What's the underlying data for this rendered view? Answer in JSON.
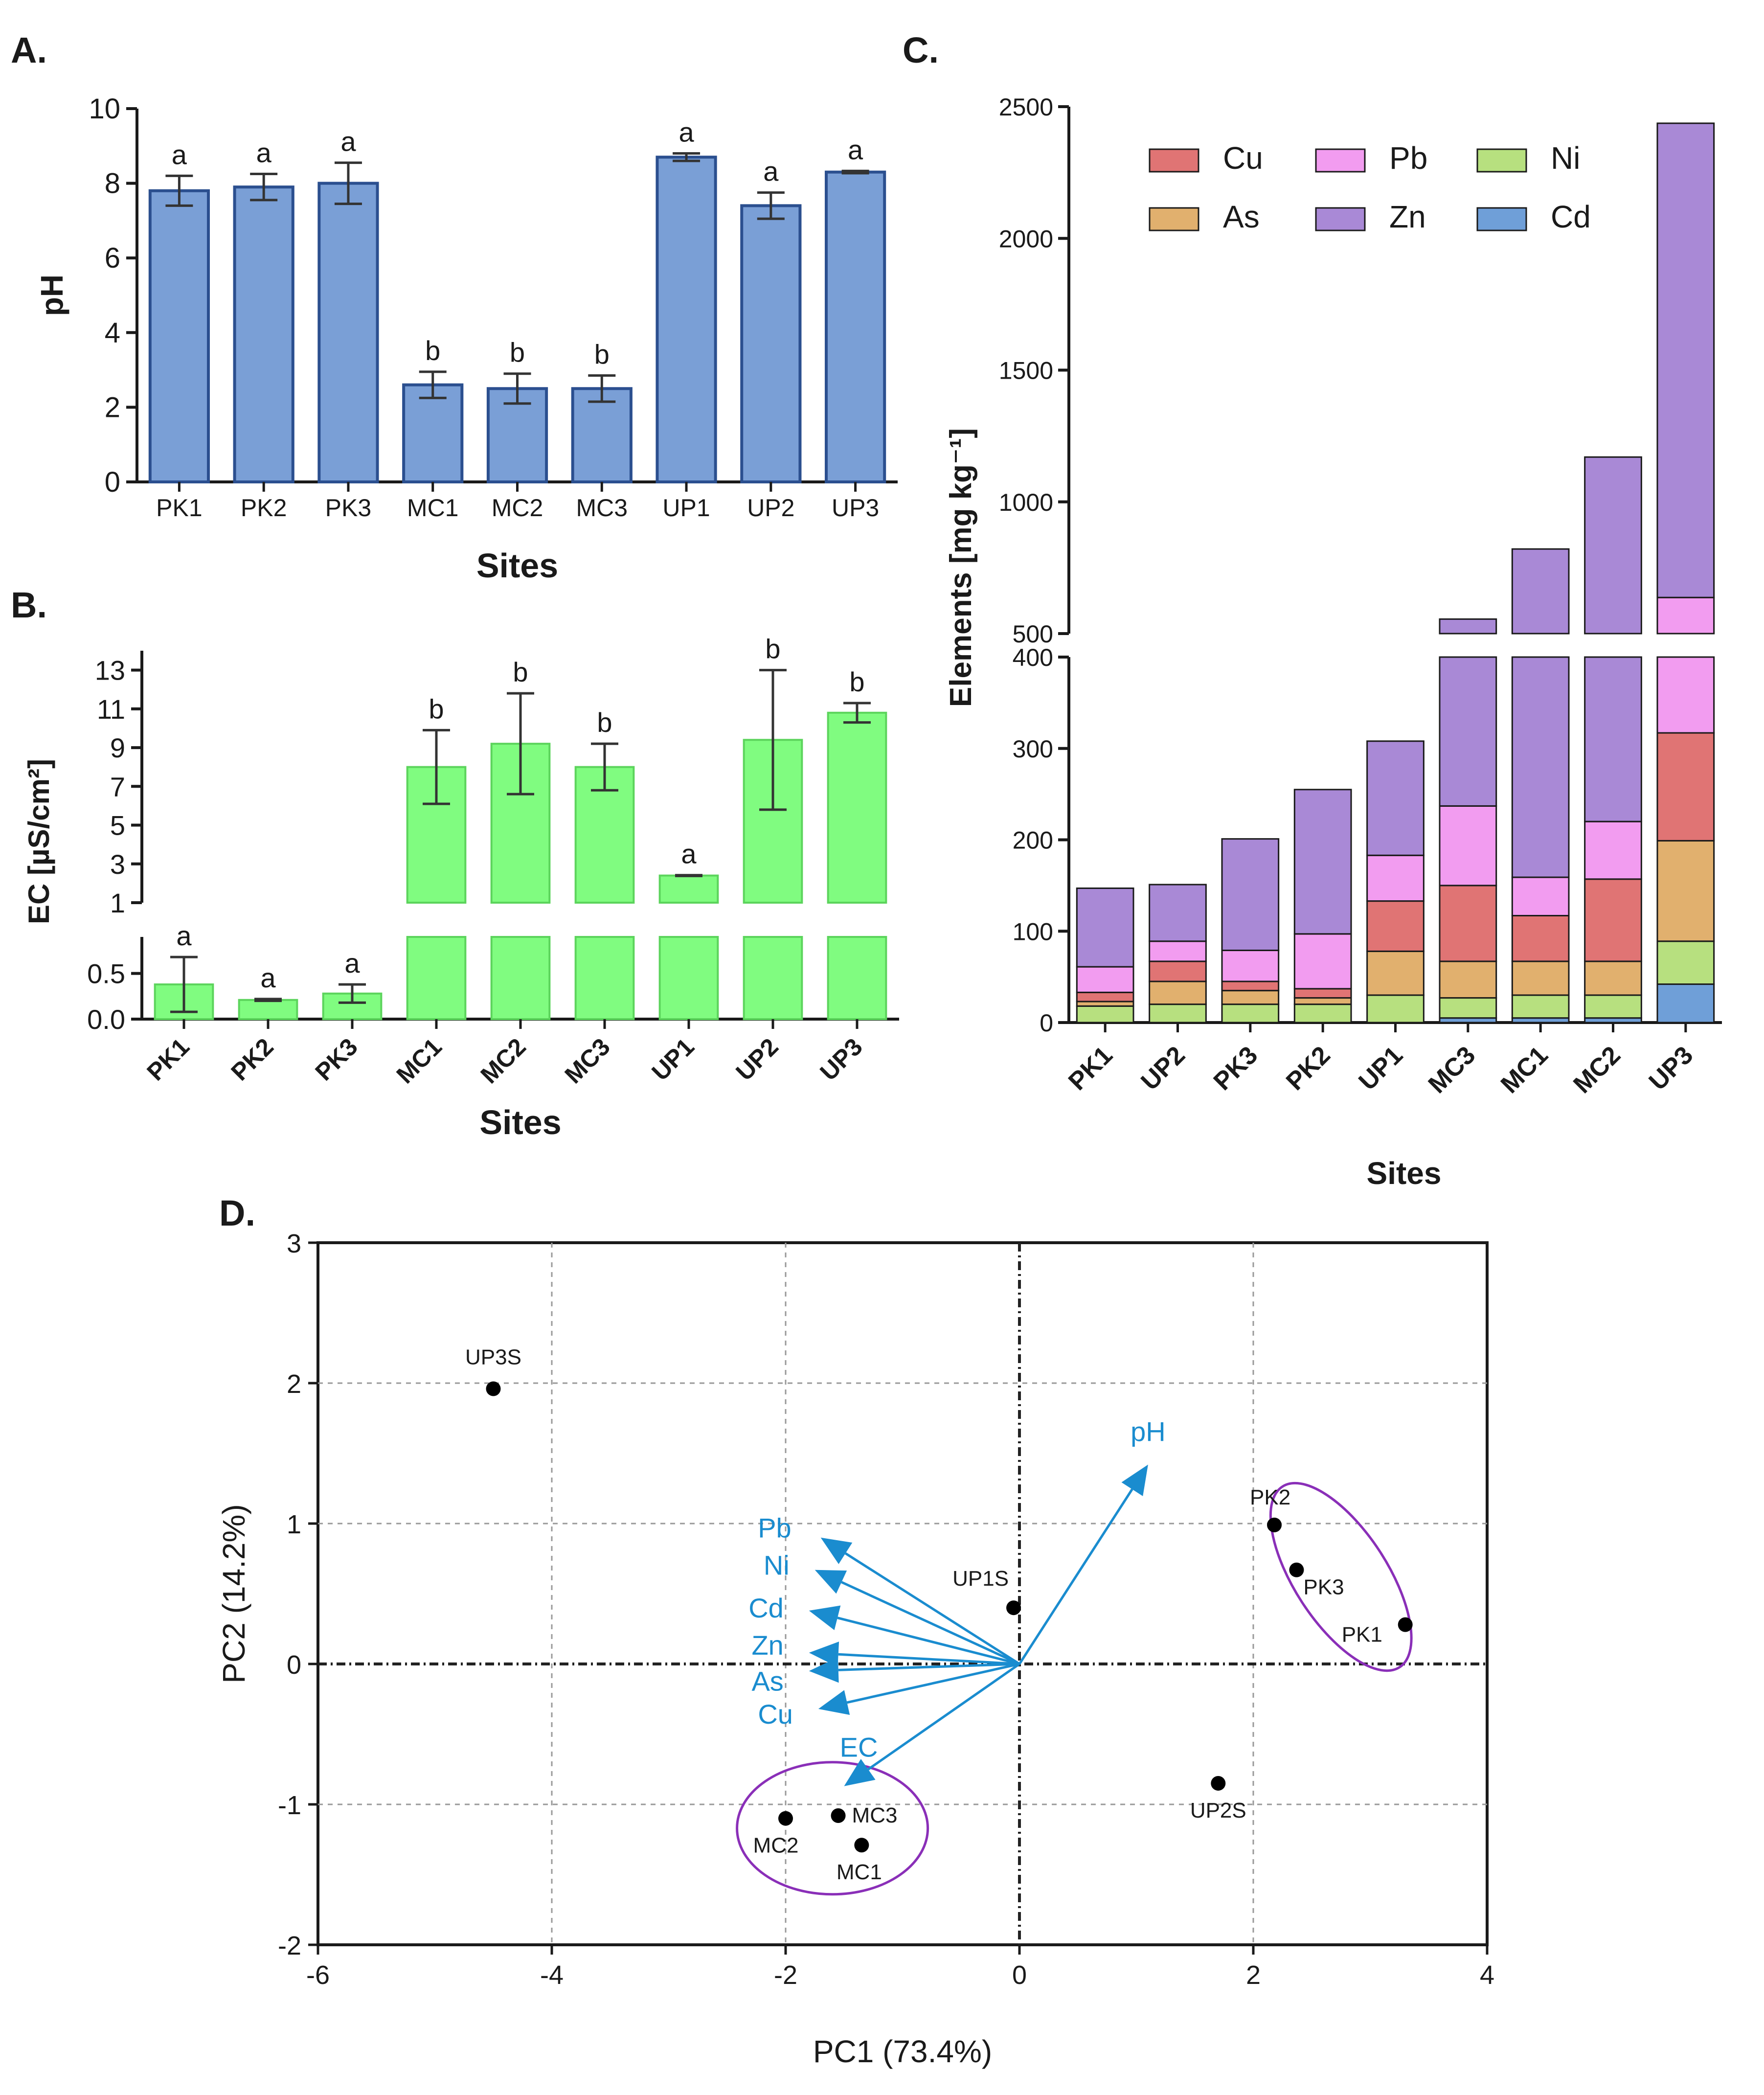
{
  "chart_data": [
    {
      "panel": "A.",
      "type": "bar",
      "ylabel": "pH",
      "xlabel": "Sites",
      "ylim": [
        0,
        10
      ],
      "yticks": [
        0,
        2,
        4,
        6,
        8,
        10
      ],
      "categories": [
        "PK1",
        "PK2",
        "PK3",
        "MC1",
        "MC2",
        "MC3",
        "UP1",
        "UP2",
        "UP3"
      ],
      "values": [
        7.8,
        7.9,
        8.0,
        2.6,
        2.5,
        2.5,
        8.7,
        7.4,
        8.3
      ],
      "errors": [
        0.4,
        0.35,
        0.55,
        0.35,
        0.4,
        0.35,
        0.1,
        0.35,
        0.03
      ],
      "letters": [
        "a",
        "a",
        "a",
        "b",
        "b",
        "b",
        "a",
        "a",
        "a"
      ],
      "color": "#7a9fd6",
      "edge_color": "#2b4f8f"
    },
    {
      "panel": "B.",
      "type": "bar",
      "ylabel": "EC [µS/cm²]",
      "xlabel": "Sites",
      "broken_axis": true,
      "lower_range": [
        0,
        0.9
      ],
      "lower_ticks": [
        "0.0",
        "0.5"
      ],
      "upper_range": [
        1,
        14
      ],
      "upper_ticks": [
        "1",
        "3",
        "5",
        "7",
        "9",
        "11",
        "13"
      ],
      "categories": [
        "PK1",
        "PK2",
        "PK3",
        "MC1",
        "MC2",
        "MC3",
        "UP1",
        "UP2",
        "UP3"
      ],
      "values": [
        0.38,
        0.21,
        0.28,
        8.0,
        9.2,
        8.0,
        2.4,
        9.4,
        10.8
      ],
      "errors": [
        0.3,
        0.01,
        0.1,
        1.9,
        2.6,
        1.2,
        0.02,
        3.6,
        0.5
      ],
      "letters": [
        "a",
        "a",
        "a",
        "b",
        "b",
        "b",
        "a",
        "b",
        "b"
      ],
      "color": "#80fc80",
      "edge_color": "#5cd45c"
    },
    {
      "panel": "C.",
      "type": "bar",
      "stacked": true,
      "ylabel": "Elements [mg kg⁻¹]",
      "xlabel": "Sites",
      "broken_axis": true,
      "lower_range": [
        0,
        400
      ],
      "lower_ticks": [
        "0",
        "100",
        "200",
        "300",
        "400"
      ],
      "upper_range": [
        500,
        2500
      ],
      "upper_ticks": [
        "500",
        "1000",
        "1500",
        "2000",
        "2500"
      ],
      "categories": [
        "PK1",
        "UP2",
        "PK3",
        "PK2",
        "UP1",
        "MC3",
        "MC1",
        "MC2",
        "UP3"
      ],
      "series": [
        {
          "name": "Cd",
          "color": "#6f9fd8",
          "values": [
            0,
            0,
            0,
            0,
            0,
            5,
            5,
            5,
            42
          ]
        },
        {
          "name": "Ni",
          "color": "#b7e07f",
          "values": [
            18,
            20,
            20,
            20,
            30,
            22,
            25,
            25,
            47
          ]
        },
        {
          "name": "As",
          "color": "#e1b06e",
          "values": [
            5,
            25,
            15,
            7,
            48,
            40,
            37,
            37,
            110
          ]
        },
        {
          "name": "Cu",
          "color": "#e07474",
          "values": [
            10,
            22,
            10,
            10,
            55,
            83,
            50,
            90,
            118
          ]
        },
        {
          "name": "Pb",
          "color": "#f29cf0",
          "values": [
            28,
            22,
            34,
            60,
            50,
            87,
            42,
            63,
            320
          ]
        },
        {
          "name": "Zn",
          "color": "#a989d6",
          "values": [
            86,
            62,
            122,
            158,
            125,
            318,
            662,
            950,
            1800
          ]
        }
      ],
      "totals": [
        147,
        151,
        201,
        255,
        308,
        555,
        821,
        1170,
        2437
      ],
      "legend": [
        "Cu",
        "Pb",
        "Ni",
        "As",
        "Zn",
        "Cd"
      ]
    },
    {
      "panel": "D.",
      "type": "scatter",
      "subtype": "pca-biplot",
      "xlabel": "PC1 (73.4%)",
      "ylabel": "PC2 (14.2%)",
      "xlim": [
        -6,
        4
      ],
      "ylim": [
        -2,
        3
      ],
      "xticks": [
        "-6",
        "-4",
        "-2",
        "0",
        "2",
        "4"
      ],
      "yticks": [
        "-2",
        "-1",
        "0",
        "1",
        "2",
        "3"
      ],
      "points": [
        {
          "label": "UP3S",
          "x": -4.5,
          "y": 1.96
        },
        {
          "label": "UP1S",
          "x": -0.05,
          "y": 0.4
        },
        {
          "label": "PK2",
          "x": 2.18,
          "y": 0.99
        },
        {
          "label": "PK3",
          "x": 2.37,
          "y": 0.67
        },
        {
          "label": "PK1",
          "x": 3.3,
          "y": 0.28
        },
        {
          "label": "UP2S",
          "x": 1.7,
          "y": -0.85
        },
        {
          "label": "MC2",
          "x": -2.0,
          "y": -1.1
        },
        {
          "label": "MC3",
          "x": -1.55,
          "y": -1.08
        },
        {
          "label": "MC1",
          "x": -1.35,
          "y": -1.29
        }
      ],
      "loadings": [
        {
          "label": "pH",
          "x": 1.1,
          "y": 1.42
        },
        {
          "label": "Pb",
          "x": -1.7,
          "y": 0.9
        },
        {
          "label": "Ni",
          "x": -1.75,
          "y": 0.67
        },
        {
          "label": "Cd",
          "x": -1.8,
          "y": 0.38
        },
        {
          "label": "Zn",
          "x": -1.8,
          "y": 0.08
        },
        {
          "label": "As",
          "x": -1.8,
          "y": -0.05
        },
        {
          "label": "Cu",
          "x": -1.72,
          "y": -0.32
        },
        {
          "label": "EC",
          "x": -1.5,
          "y": -0.87
        }
      ],
      "point_color": "#000000",
      "loading_color": "#1a8ccf",
      "ellipse_color": "#8a2fb8"
    }
  ]
}
